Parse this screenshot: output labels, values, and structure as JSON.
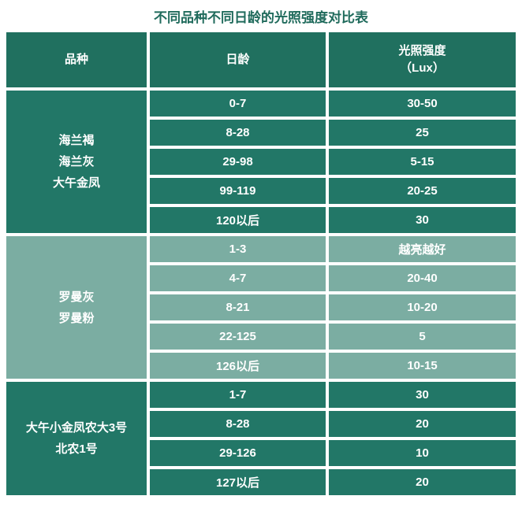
{
  "title": "不同品种不同日龄的光照强度对比表",
  "colors": {
    "title_text": "#206b5c",
    "header_bg": "#20705f",
    "section_dark_bg": "#227767",
    "section_light_bg": "#7bada2",
    "cell_text": "#ffffff",
    "grid_lines": "#ffffff",
    "page_bg": "#ffffff"
  },
  "chart_data": {
    "type": "table",
    "title": "不同品种不同日龄的光照强度对比表",
    "columns": [
      {
        "label": "品种"
      },
      {
        "label": "日龄"
      },
      {
        "label": "光照强度",
        "sublabel": "（Lux）"
      }
    ],
    "sections": [
      {
        "breed_lines": [
          "海兰褐",
          "海兰灰",
          "大午金凤"
        ],
        "tone": "dark",
        "rows": [
          {
            "age": "0-7",
            "lux": "30-50"
          },
          {
            "age": "8-28",
            "lux": "25"
          },
          {
            "age": "29-98",
            "lux": "5-15"
          },
          {
            "age": "99-119",
            "lux": "20-25"
          },
          {
            "age": "120以后",
            "lux": "30"
          }
        ]
      },
      {
        "breed_lines": [
          "罗曼灰",
          "罗曼粉"
        ],
        "tone": "light",
        "rows": [
          {
            "age": "1-3",
            "lux": "越亮越好"
          },
          {
            "age": "4-7",
            "lux": "20-40"
          },
          {
            "age": "8-21",
            "lux": "10-20"
          },
          {
            "age": "22-125",
            "lux": "5"
          },
          {
            "age": "126以后",
            "lux": "10-15"
          }
        ]
      },
      {
        "breed_lines": [
          "大午小金凤农大3号",
          "北农1号"
        ],
        "tone": "dark",
        "rows": [
          {
            "age": "1-7",
            "lux": "30"
          },
          {
            "age": "8-28",
            "lux": "20"
          },
          {
            "age": "29-126",
            "lux": "10"
          },
          {
            "age": "127以后",
            "lux": "20"
          }
        ]
      }
    ]
  }
}
